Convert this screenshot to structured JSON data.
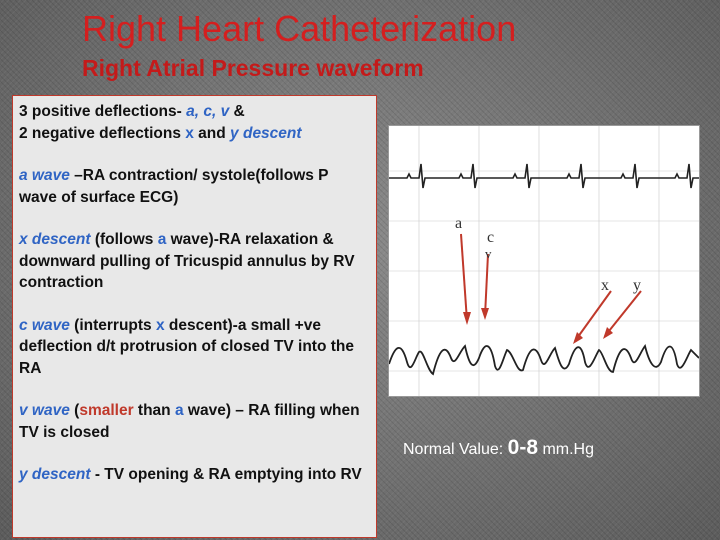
{
  "title": "Right Heart Catheterization",
  "subtitle": "Right Atrial Pressure waveform",
  "text": {
    "p1": {
      "line1_a": "3 positive deflections- ",
      "waves": "a, c, v",
      "line1_b": " &",
      "line2_a": "2 negative deflections ",
      "x": "x",
      "line2_b": " and ",
      "ydesc": "y descent"
    },
    "p2": {
      "term": "a wave",
      "rest": " –RA contraction/ systole(follows P wave of surface ECG)"
    },
    "p3": {
      "term": "x descent",
      "mid1": " (follows ",
      "a": "a",
      "rest": " wave)-RA relaxation & downward pulling of Tricuspid annulus by RV contraction"
    },
    "p4": {
      "term": "c wave",
      "mid1": " (interrupts ",
      "x": "x",
      "rest": " descent)-a small +ve deflection d/t protrusion of closed TV into the RA"
    },
    "p5": {
      "term": "v wave",
      "open": " (",
      "smaller": "smaller",
      "mid": " than ",
      "a": "a",
      "rest": " wave) – RA filling when TV is closed"
    },
    "p6": {
      "term": "y descent",
      "rest": " - TV opening & RA emptying into RV"
    }
  },
  "figure": {
    "label_a": "a",
    "label_c": "c",
    "label_v": "v",
    "label_x": "x",
    "label_y": "y"
  },
  "normal": {
    "label": "Normal Value: ",
    "value": "0-8",
    "unit": " mm.Hg"
  }
}
